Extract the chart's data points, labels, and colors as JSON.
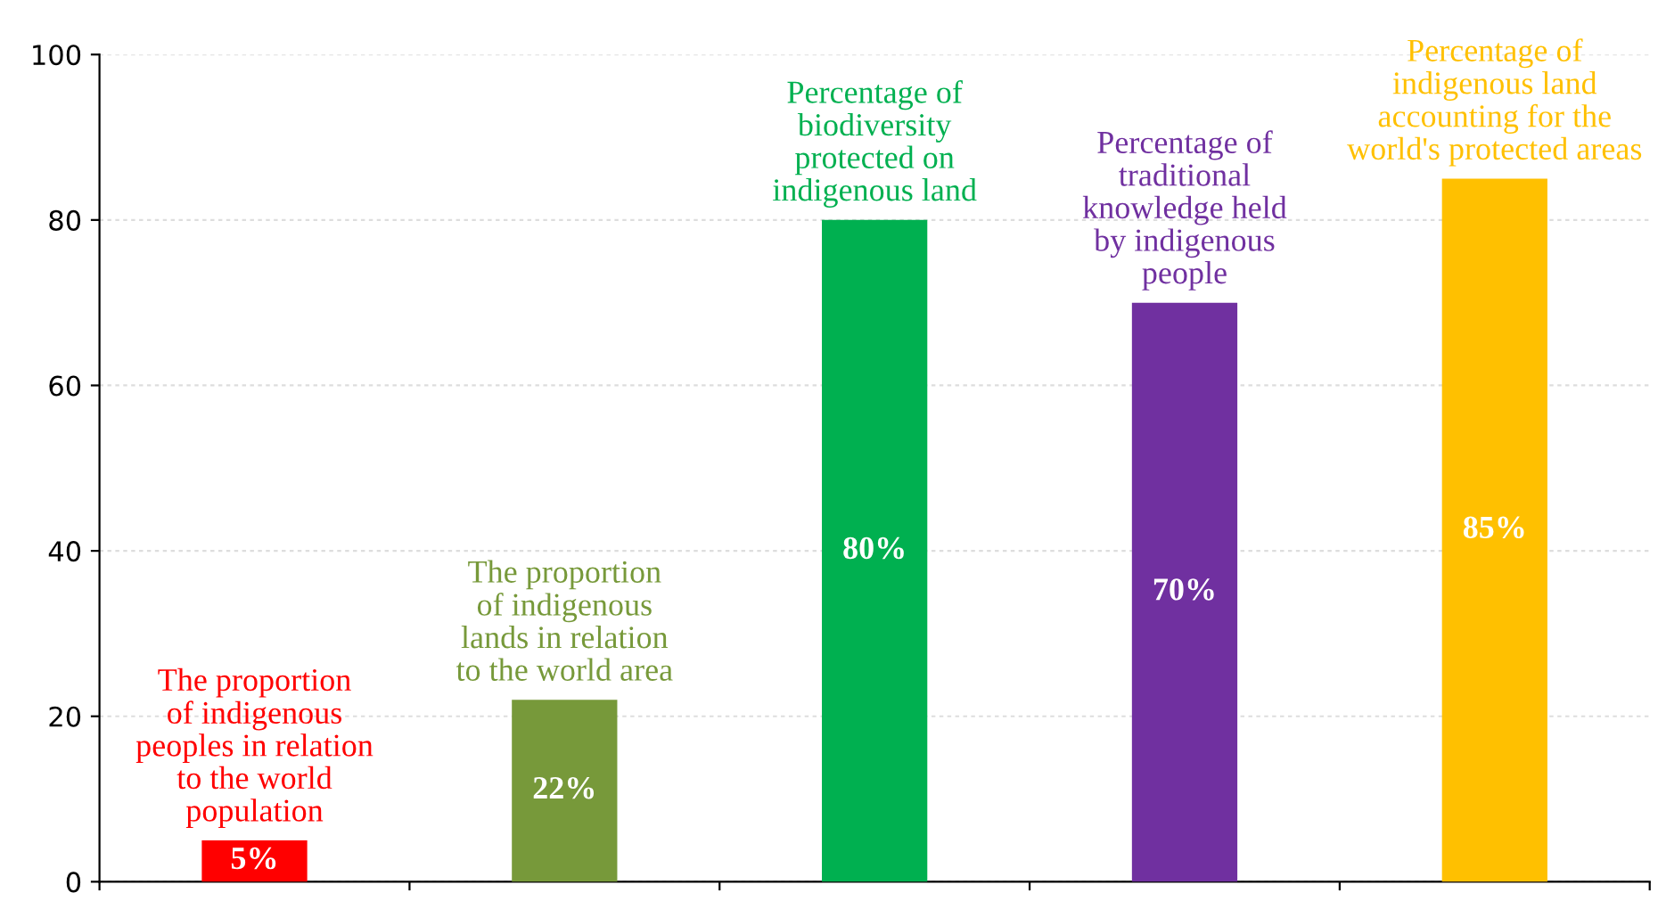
{
  "chart_data": {
    "type": "bar",
    "categories": [
      "The proportion\nof indigenous\npeoples in relation\nto the world\npopulation",
      "The proportion\nof indigenous\nlands in relation\nto the world area",
      "Percentage of\nbiodiversity\nprotected on\nindigenous land",
      "Percentage of\ntraditional\nknowledge held\nby indigenous\npeople",
      "Percentage of\nindigenous land\naccounting for the\nworld's protected areas"
    ],
    "values": [
      5,
      22,
      80,
      70,
      85
    ],
    "colors": [
      "#ff0000",
      "#77993a",
      "#00b050",
      "#7030a0",
      "#ffc000"
    ],
    "value_labels": [
      "5%",
      "22%",
      "80%",
      "70%",
      "85%"
    ],
    "ylim": [
      0,
      100
    ],
    "yticks": [
      0,
      20,
      40,
      60,
      80,
      100
    ],
    "grid": "y",
    "legend": false
  }
}
